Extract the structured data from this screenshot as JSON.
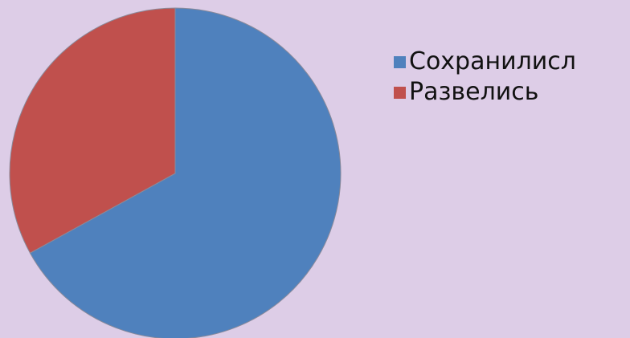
{
  "chart_data": {
    "type": "pie",
    "title": "",
    "start_angle_deg": 0,
    "direction": "clockwise",
    "legend_position": "right",
    "categories": [
      "Сохранилисл",
      "Развелись"
    ],
    "values": [
      67,
      33
    ],
    "unit": "%",
    "colors": [
      "#4f81bd",
      "#c0504d"
    ],
    "legend": {
      "items": [
        {
          "label": "Сохранилисл",
          "color": "#4f81bd"
        },
        {
          "label": "Развелись",
          "color": "#c0504d"
        }
      ]
    }
  },
  "background_color": "#ddcde7"
}
